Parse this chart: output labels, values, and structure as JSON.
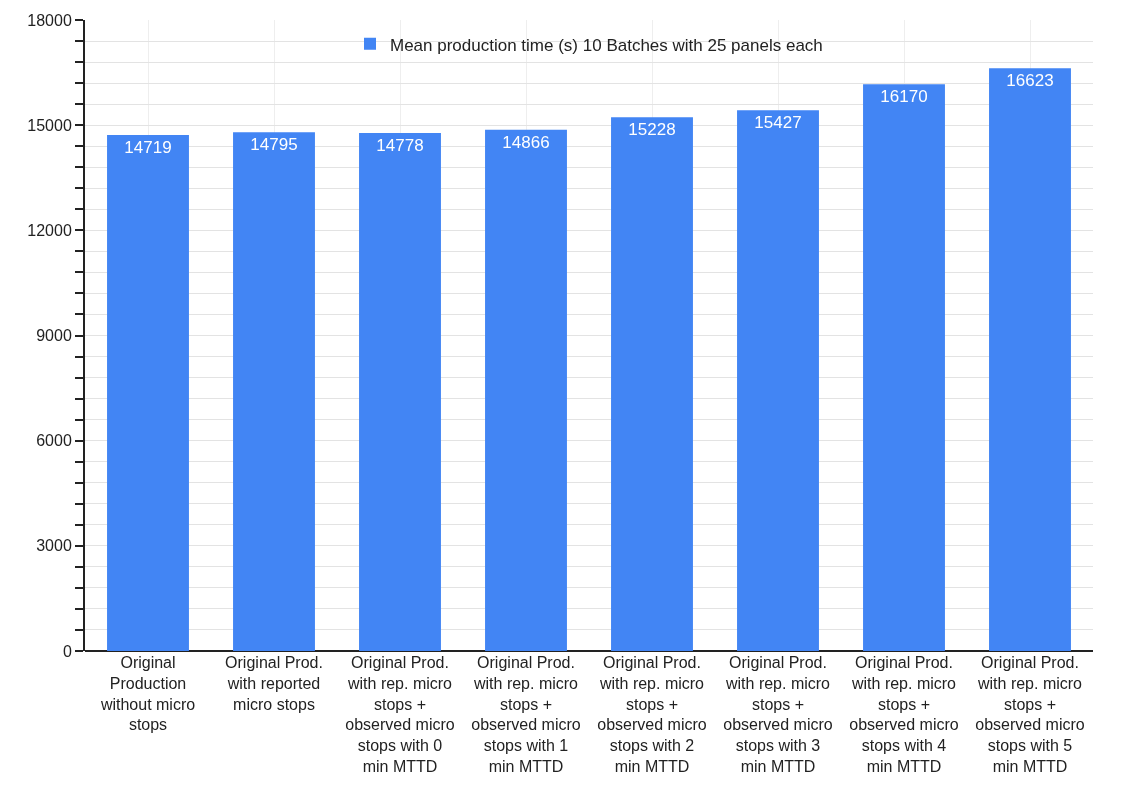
{
  "chart_data": {
    "type": "bar",
    "categories": [
      "Original Production without micro stops",
      "Original Prod. with reported micro stops",
      "Original Prod. with rep. micro stops + observed micro stops with 0 min MTTD",
      "Original Prod. with rep. micro stops + observed micro stops with 1 min MTTD",
      "Original Prod. with rep. micro stops + observed micro stops with 2 min MTTD",
      "Original Prod. with rep. micro stops + observed micro stops with 3 min MTTD",
      "Original Prod. with rep. micro stops + observed micro stops with 4 min MTTD",
      "Original Prod. with rep. micro stops + observed micro stops with 5 min MTTD"
    ],
    "series": [
      {
        "name": "Mean production time (s) 10 Batches with 25 panels each",
        "color": "#4285f4",
        "values": [
          14719,
          14795,
          14778,
          14866,
          15228,
          15427,
          16170,
          16623
        ]
      }
    ],
    "ylim": [
      0,
      18000
    ],
    "yticks": [
      0,
      {
        "value": 600,
        "label": null
      },
      {
        "value": 1200,
        "label": null
      },
      {
        "value": 1800,
        "label": null
      },
      {
        "value": 2400,
        "label": null
      },
      3000,
      {
        "value": 3600,
        "label": null
      },
      {
        "value": 4200,
        "label": null
      },
      {
        "value": 4800,
        "label": null
      },
      {
        "value": 5400,
        "label": null
      },
      6000,
      {
        "value": 6600,
        "label": null
      },
      {
        "value": 7200,
        "label": null
      },
      {
        "value": 7800,
        "label": null
      },
      {
        "value": 8400,
        "label": null
      },
      9000,
      {
        "value": 9600,
        "label": null
      },
      {
        "value": 10200,
        "label": null
      },
      {
        "value": 10800,
        "label": null
      },
      {
        "value": 11400,
        "label": null
      },
      12000,
      {
        "value": 12600,
        "label": null
      },
      {
        "value": 13200,
        "label": null
      },
      {
        "value": 13800,
        "label": null
      },
      {
        "value": 14400,
        "label": null
      },
      15000,
      {
        "value": 15600,
        "label": null
      },
      {
        "value": 16200,
        "label": null
      },
      {
        "value": 16800,
        "label": null
      },
      {
        "value": 17400,
        "label": null
      },
      18000
    ],
    "grid": true,
    "legend": "top",
    "data_labels": true
  }
}
